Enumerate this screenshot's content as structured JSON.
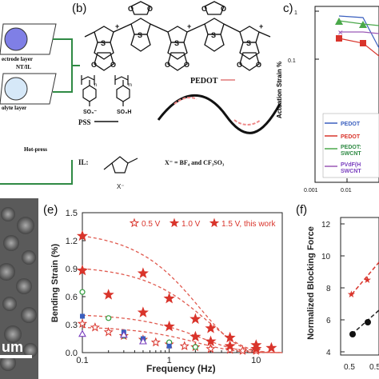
{
  "panel_b": {
    "label": "(b)",
    "pedot_label": "PEDOT",
    "pss_label": "PSS",
    "il_label": "IL:",
    "anion_text": "X⁻ = BF₄ and  CF₃SO₃",
    "x_minus": "X⁻",
    "so3_1": "SO₃⁻",
    "so3_2": "SO₃H",
    "subscript_n": "n",
    "subscript_m": "m"
  },
  "panel_a": {
    "layer1": "ectrode layer",
    "layer1b": "NT/IL",
    "layer2": "olyte layer",
    "hot_press": "Hot-press"
  },
  "panel_c": {
    "label": "c)",
    "ylabel": "Actuation Strain %",
    "ytick_1": "1",
    "ytick_01": "0.1",
    "xtick_0001": "0.001",
    "xtick_001": "0.01",
    "legend": [
      "PEDOT",
      "PEDOT",
      "PEDOT:",
      "SWCNT",
      "PVdF(H",
      "SWCNT"
    ]
  },
  "panel_d": {
    "scale_text": "um"
  },
  "panel_f": {
    "label": "(f)",
    "ylabel": "Normalized Blocking Force",
    "yticks": [
      "12",
      "10",
      "8",
      "6",
      "4"
    ],
    "xticks": [
      "0.5",
      "0.5"
    ]
  },
  "chart_data": {
    "type": "scatter",
    "title": "",
    "panel_label": "(e)",
    "xlabel": "Frequency (Hz)",
    "ylabel": "Bending Strain (%)",
    "xscale": "log",
    "xlim": [
      0.1,
      20
    ],
    "ylim": [
      0.0,
      1.5
    ],
    "xticks": [
      0.1,
      1,
      10
    ],
    "xtick_labels": [
      "0.1",
      "1",
      "10"
    ],
    "yticks": [
      0.0,
      0.3,
      0.6,
      0.9,
      1.2,
      1.5
    ],
    "ytick_labels": [
      "0.0",
      "0.3",
      "0.6",
      "0.9",
      "1.2",
      "1.5"
    ],
    "legend_position": "top",
    "series": [
      {
        "name": "0.5 V",
        "marker": "star-open",
        "color": "#d9342b",
        "x": [
          0.1,
          0.14,
          0.2,
          0.3,
          0.5,
          0.7,
          1,
          1.5,
          2,
          3,
          5,
          7,
          10
        ],
        "y": [
          0.31,
          0.27,
          0.22,
          0.18,
          0.14,
          0.11,
          0.09,
          0.07,
          0.06,
          0.04,
          0.03,
          0.02,
          0.02
        ]
      },
      {
        "name": "1.0 V",
        "marker": "star",
        "color": "#d9342b",
        "x": [
          0.1,
          0.2,
          0.5,
          1,
          2,
          3,
          5,
          10
        ],
        "y": [
          0.88,
          0.62,
          0.43,
          0.28,
          0.17,
          0.12,
          0.07,
          0.04
        ]
      },
      {
        "name": "1.5 V, this work",
        "marker": "star",
        "color": "#d9342b",
        "x": [
          0.1,
          0.5,
          1,
          2,
          3,
          5,
          10,
          15
        ],
        "y": [
          1.25,
          0.85,
          0.58,
          0.36,
          0.26,
          0.16,
          0.08,
          0.05
        ]
      },
      {
        "name": "",
        "marker": "circle-open",
        "color": "#2e9b3a",
        "x": [
          0.1,
          0.2,
          0.3,
          0.5,
          1,
          2
        ],
        "y": [
          0.65,
          0.37,
          0.18,
          0.14,
          0.11,
          0.06
        ]
      },
      {
        "name": "",
        "marker": "square",
        "color": "#3a5fbf",
        "x": [
          0.1,
          0.3,
          0.5,
          1
        ],
        "y": [
          0.39,
          0.22,
          0.15,
          0.07
        ]
      },
      {
        "name": "",
        "marker": "triangle-open",
        "color": "#7a3fbf",
        "x": [
          0.1,
          0.3,
          0.5
        ],
        "y": [
          0.2,
          0.19,
          0.12
        ]
      }
    ],
    "fit_curves": [
      {
        "a": 1.25,
        "k": 0.28
      },
      {
        "a": 0.9,
        "k": 0.34
      },
      {
        "a": 0.4,
        "k": 0.3
      },
      {
        "a": 0.27,
        "k": 0.27
      }
    ]
  },
  "colors": {
    "red": "#d9342b",
    "green_line": "#2f8a44",
    "blue": "#3a5fbf"
  }
}
